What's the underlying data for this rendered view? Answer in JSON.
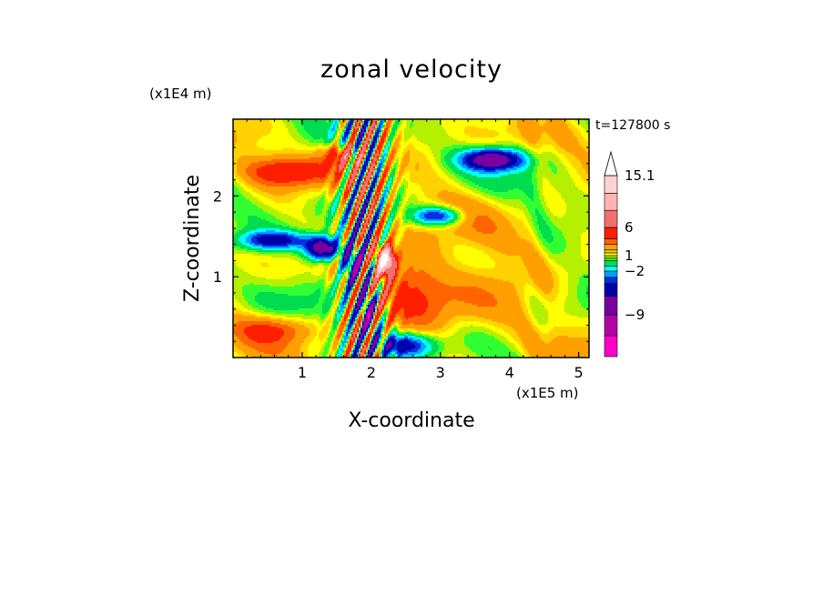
{
  "chart_data": {
    "type": "heatmap",
    "title": "zonal velocity",
    "xlabel": "X-coordinate",
    "ylabel": "Z-coordinate",
    "x_unit_label": "(x1E5 m)",
    "y_unit_label": "(x1E4 m)",
    "time_label": "t=127800 s",
    "xlim": [
      0,
      5.15
    ],
    "ylim": [
      0,
      2.95
    ],
    "x_ticks": [
      1,
      2,
      3,
      4,
      5
    ],
    "y_ticks": [
      1,
      2
    ],
    "colorbar": {
      "levels": [
        -15,
        -12,
        -9,
        -6,
        -4,
        -3,
        -2,
        -1,
        0,
        0.5,
        1,
        1.5,
        2,
        3,
        4,
        6,
        9,
        12,
        15.1
      ],
      "tick_labels": [
        {
          "value": 15.1,
          "text": "15.1"
        },
        {
          "value": 6,
          "text": "6"
        },
        {
          "value": 1,
          "text": "1"
        },
        {
          "value": -2,
          "text": "−2"
        },
        {
          "value": -9,
          "text": "−9"
        }
      ],
      "colors": [
        "#ff00c8",
        "#b400a8",
        "#7800a0",
        "#0000aa",
        "#0030e0",
        "#00a0ff",
        "#00ffff",
        "#00dc50",
        "#32ff32",
        "#b4f000",
        "#ffff00",
        "#ffd200",
        "#ffa000",
        "#ff6400",
        "#ff1e00",
        "#f07070",
        "#ffb4b4",
        "#ffd2d2"
      ],
      "extend_top": true
    },
    "field_description": "Zonal velocity field u(x,z): mostly weak positive (yellow/green), strong oscillating bands near x=1.5-2.3 with max ~15 near (2.2,1.2), negative cores near (1.3-1.8,1.0-1.5) and (3.7,2.5)"
  }
}
